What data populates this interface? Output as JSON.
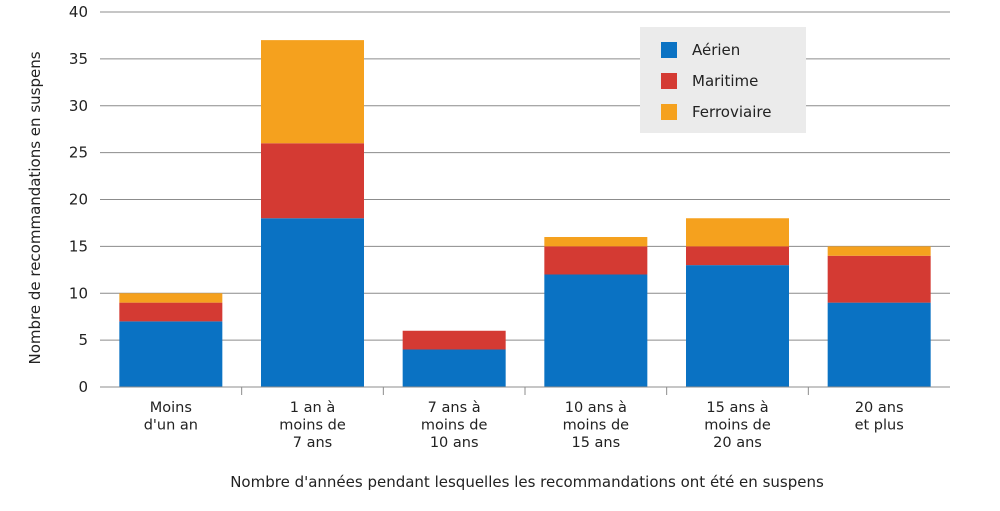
{
  "chart_data": {
    "type": "bar",
    "stacked": true,
    "categories": [
      [
        "Moins",
        "d'un an"
      ],
      [
        "1 an à",
        "moins de",
        "7 ans"
      ],
      [
        "7 ans à",
        "moins de",
        "10 ans"
      ],
      [
        "10 ans à",
        "moins de",
        "15 ans"
      ],
      [
        "15 ans à",
        "moins de",
        "20 ans"
      ],
      [
        "20 ans",
        "et plus"
      ]
    ],
    "series": [
      {
        "name": "Aérien",
        "color": "#0a72c3",
        "values": [
          7,
          18,
          4,
          12,
          13,
          9
        ]
      },
      {
        "name": "Maritime",
        "color": "#d43a33",
        "values": [
          2,
          8,
          2,
          3,
          2,
          5
        ]
      },
      {
        "name": "Ferroviaire",
        "color": "#f5a11e",
        "values": [
          1,
          11,
          0,
          1,
          3,
          1
        ]
      }
    ],
    "xlabel": "Nombre d'années pendant lesquelles les recommandations ont été en suspens",
    "ylabel": "Nombre de recommandations en suspens",
    "ylim": [
      0,
      40
    ],
    "yticks": [
      0,
      5,
      10,
      15,
      20,
      25,
      30,
      35,
      40
    ],
    "grid": true,
    "legend_position": "top-right"
  }
}
